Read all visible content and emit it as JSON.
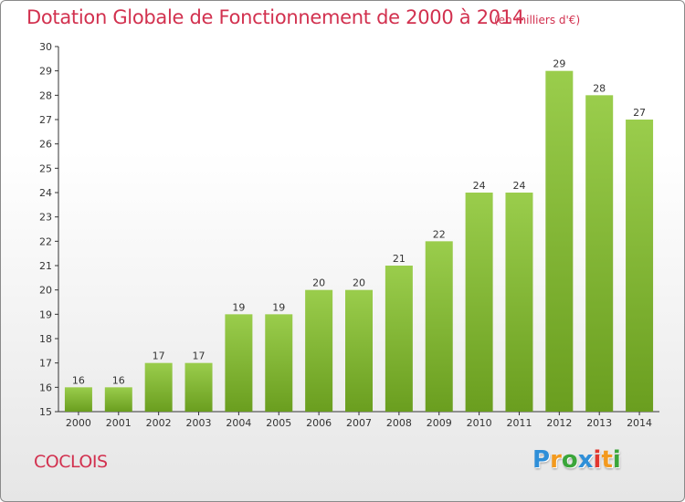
{
  "chart_data": {
    "type": "bar",
    "title": "Dotation Globale de Fonctionnement de 2000 à 2014",
    "subtitle": "(en milliers d'€)",
    "categories": [
      "2000",
      "2001",
      "2002",
      "2003",
      "2004",
      "2005",
      "2006",
      "2007",
      "2008",
      "2009",
      "2010",
      "2011",
      "2012",
      "2013",
      "2014"
    ],
    "values": [
      16,
      16,
      17,
      17,
      19,
      19,
      20,
      20,
      21,
      22,
      24,
      24,
      29,
      28,
      27
    ],
    "ylim": [
      15,
      30
    ],
    "yticks": [
      15,
      16,
      17,
      18,
      19,
      20,
      21,
      22,
      23,
      24,
      25,
      26,
      27,
      28,
      29,
      30
    ],
    "xlabel": "",
    "ylabel": "",
    "grid": false,
    "legend": "none",
    "bar_color_top": "#9acd4c",
    "bar_color_bottom": "#6a9e1f",
    "data_labels": true
  },
  "commune": "COCLOIS",
  "logo": {
    "letters": [
      "P",
      "r",
      "o",
      "x",
      "i",
      "t",
      "i"
    ],
    "colors": [
      "#2f8fd8",
      "#f39a1e",
      "#3aa63a",
      "#2f8fd8",
      "#e2362e",
      "#f39a1e",
      "#3aa63a"
    ]
  },
  "colors": {
    "title": "#d2314f",
    "axis": "#333333"
  }
}
